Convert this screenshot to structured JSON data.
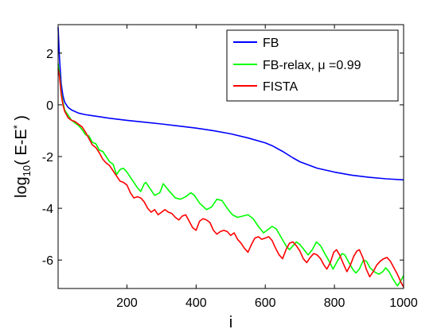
{
  "chart_data": {
    "type": "line",
    "title": "",
    "xlabel": "i",
    "ylabel": {
      "prefix": "log",
      "subscript": "10",
      "body": "( E-E",
      "superscript": "*",
      "suffix": " )"
    },
    "xlim": [
      1,
      1000
    ],
    "ylim": [
      -7.1,
      3.1
    ],
    "xticks": [
      200,
      400,
      600,
      800,
      1000
    ],
    "yticks": [
      -6,
      -4,
      -2,
      0,
      2
    ],
    "grid": false,
    "legend_position": "top-right",
    "series": [
      {
        "name": "FB",
        "color": "#0000ff",
        "points": [
          [
            1,
            3.0
          ],
          [
            5,
            1.8
          ],
          [
            10,
            0.8
          ],
          [
            15,
            0.35
          ],
          [
            20,
            0.1
          ],
          [
            30,
            -0.1
          ],
          [
            40,
            -0.2
          ],
          [
            60,
            -0.32
          ],
          [
            80,
            -0.38
          ],
          [
            100,
            -0.42
          ],
          [
            150,
            -0.52
          ],
          [
            200,
            -0.6
          ],
          [
            250,
            -0.67
          ],
          [
            300,
            -0.74
          ],
          [
            350,
            -0.82
          ],
          [
            400,
            -0.9
          ],
          [
            450,
            -1.0
          ],
          [
            500,
            -1.12
          ],
          [
            550,
            -1.28
          ],
          [
            600,
            -1.47
          ],
          [
            620,
            -1.58
          ],
          [
            650,
            -1.8
          ],
          [
            680,
            -2.05
          ],
          [
            700,
            -2.2
          ],
          [
            750,
            -2.45
          ],
          [
            800,
            -2.6
          ],
          [
            850,
            -2.72
          ],
          [
            900,
            -2.8
          ],
          [
            950,
            -2.86
          ],
          [
            1000,
            -2.9
          ]
        ]
      },
      {
        "name": "FB-relax, μ =0.99",
        "color": "#00ff00",
        "points": [
          [
            1,
            1.6
          ],
          [
            5,
            1.2
          ],
          [
            10,
            0.5
          ],
          [
            15,
            0.1
          ],
          [
            20,
            -0.2
          ],
          [
            30,
            -0.4
          ],
          [
            40,
            -0.6
          ],
          [
            50,
            -0.7
          ],
          [
            60,
            -0.8
          ],
          [
            70,
            -0.95
          ],
          [
            80,
            -1.15
          ],
          [
            90,
            -1.2
          ],
          [
            100,
            -1.45
          ],
          [
            110,
            -1.5
          ],
          [
            120,
            -1.75
          ],
          [
            130,
            -1.8
          ],
          [
            140,
            -2.0
          ],
          [
            150,
            -2.2
          ],
          [
            160,
            -2.3
          ],
          [
            170,
            -2.7
          ],
          [
            180,
            -2.5
          ],
          [
            190,
            -2.45
          ],
          [
            200,
            -2.6
          ],
          [
            215,
            -2.9
          ],
          [
            230,
            -3.2
          ],
          [
            240,
            -3.35
          ],
          [
            250,
            -3.05
          ],
          [
            255,
            -3.0
          ],
          [
            265,
            -3.2
          ],
          [
            280,
            -3.5
          ],
          [
            295,
            -3.4
          ],
          [
            305,
            -3.05
          ],
          [
            320,
            -3.3
          ],
          [
            340,
            -3.6
          ],
          [
            355,
            -3.65
          ],
          [
            370,
            -3.55
          ],
          [
            385,
            -3.4
          ],
          [
            395,
            -3.5
          ],
          [
            410,
            -3.8
          ],
          [
            430,
            -4.05
          ],
          [
            445,
            -3.95
          ],
          [
            460,
            -3.65
          ],
          [
            475,
            -3.7
          ],
          [
            490,
            -4.0
          ],
          [
            505,
            -4.25
          ],
          [
            520,
            -4.35
          ],
          [
            535,
            -4.3
          ],
          [
            550,
            -4.25
          ],
          [
            565,
            -4.4
          ],
          [
            580,
            -4.7
          ],
          [
            595,
            -4.95
          ],
          [
            605,
            -4.85
          ],
          [
            620,
            -4.7
          ],
          [
            632,
            -4.8
          ],
          [
            645,
            -5.1
          ],
          [
            660,
            -5.45
          ],
          [
            670,
            -5.6
          ],
          [
            680,
            -5.45
          ],
          [
            690,
            -5.3
          ],
          [
            700,
            -5.4
          ],
          [
            712,
            -5.6
          ],
          [
            724,
            -5.8
          ],
          [
            736,
            -5.6
          ],
          [
            748,
            -5.3
          ],
          [
            760,
            -5.45
          ],
          [
            772,
            -5.75
          ],
          [
            785,
            -6.05
          ],
          [
            796,
            -6.35
          ],
          [
            808,
            -6.05
          ],
          [
            822,
            -5.75
          ],
          [
            830,
            -5.8
          ],
          [
            842,
            -6.1
          ],
          [
            855,
            -6.4
          ],
          [
            862,
            -6.5
          ],
          [
            872,
            -6.35
          ],
          [
            884,
            -6.0
          ],
          [
            893,
            -6.05
          ],
          [
            903,
            -6.3
          ],
          [
            915,
            -6.45
          ],
          [
            928,
            -6.55
          ],
          [
            940,
            -6.45
          ],
          [
            948,
            -6.3
          ],
          [
            958,
            -6.45
          ],
          [
            970,
            -6.75
          ],
          [
            982,
            -7.0
          ],
          [
            992,
            -6.8
          ],
          [
            1000,
            -6.6
          ]
        ]
      },
      {
        "name": "FISTA",
        "color": "#ff0000",
        "points": [
          [
            1,
            1.4
          ],
          [
            5,
            1.1
          ],
          [
            10,
            0.4
          ],
          [
            15,
            0.0
          ],
          [
            20,
            -0.25
          ],
          [
            30,
            -0.5
          ],
          [
            40,
            -0.6
          ],
          [
            50,
            -0.65
          ],
          [
            60,
            -0.75
          ],
          [
            70,
            -0.85
          ],
          [
            80,
            -1.05
          ],
          [
            90,
            -1.3
          ],
          [
            100,
            -1.55
          ],
          [
            110,
            -1.65
          ],
          [
            120,
            -1.85
          ],
          [
            130,
            -2.1
          ],
          [
            140,
            -2.25
          ],
          [
            150,
            -2.35
          ],
          [
            160,
            -2.55
          ],
          [
            170,
            -2.75
          ],
          [
            180,
            -2.95
          ],
          [
            190,
            -3.0
          ],
          [
            200,
            -3.1
          ],
          [
            210,
            -3.4
          ],
          [
            220,
            -3.6
          ],
          [
            230,
            -3.55
          ],
          [
            240,
            -3.6
          ],
          [
            250,
            -3.75
          ],
          [
            260,
            -4.0
          ],
          [
            270,
            -4.15
          ],
          [
            280,
            -4.05
          ],
          [
            290,
            -4.25
          ],
          [
            300,
            -4.15
          ],
          [
            310,
            -4.05
          ],
          [
            320,
            -4.15
          ],
          [
            330,
            -4.2
          ],
          [
            340,
            -4.35
          ],
          [
            350,
            -4.45
          ],
          [
            360,
            -4.3
          ],
          [
            370,
            -4.25
          ],
          [
            380,
            -4.5
          ],
          [
            390,
            -4.75
          ],
          [
            400,
            -4.85
          ],
          [
            410,
            -4.5
          ],
          [
            420,
            -4.4
          ],
          [
            430,
            -4.45
          ],
          [
            440,
            -4.55
          ],
          [
            450,
            -4.85
          ],
          [
            460,
            -5.0
          ],
          [
            470,
            -4.9
          ],
          [
            480,
            -4.85
          ],
          [
            490,
            -4.9
          ],
          [
            500,
            -5.05
          ],
          [
            510,
            -4.95
          ],
          [
            520,
            -5.2
          ],
          [
            530,
            -5.35
          ],
          [
            540,
            -5.55
          ],
          [
            550,
            -5.7
          ],
          [
            560,
            -5.4
          ],
          [
            570,
            -5.15
          ],
          [
            580,
            -5.1
          ],
          [
            590,
            -5.2
          ],
          [
            600,
            -5.15
          ],
          [
            610,
            -5.1
          ],
          [
            620,
            -5.25
          ],
          [
            630,
            -5.55
          ],
          [
            640,
            -5.8
          ],
          [
            650,
            -5.95
          ],
          [
            660,
            -5.6
          ],
          [
            670,
            -5.35
          ],
          [
            680,
            -5.3
          ],
          [
            690,
            -5.45
          ],
          [
            700,
            -5.65
          ],
          [
            710,
            -5.95
          ],
          [
            720,
            -6.1
          ],
          [
            730,
            -5.9
          ],
          [
            740,
            -5.75
          ],
          [
            750,
            -5.8
          ],
          [
            760,
            -5.95
          ],
          [
            770,
            -6.2
          ],
          [
            778,
            -6.35
          ],
          [
            788,
            -6.1
          ],
          [
            798,
            -5.7
          ],
          [
            806,
            -5.6
          ],
          [
            815,
            -5.8
          ],
          [
            826,
            -6.15
          ],
          [
            836,
            -6.45
          ],
          [
            846,
            -6.2
          ],
          [
            856,
            -5.85
          ],
          [
            865,
            -5.65
          ],
          [
            872,
            -5.6
          ],
          [
            882,
            -5.9
          ],
          [
            892,
            -6.35
          ],
          [
            902,
            -6.65
          ],
          [
            912,
            -6.45
          ],
          [
            922,
            -6.2
          ],
          [
            932,
            -6.05
          ],
          [
            942,
            -5.95
          ],
          [
            952,
            -5.9
          ],
          [
            962,
            -6.05
          ],
          [
            972,
            -6.3
          ],
          [
            982,
            -6.55
          ],
          [
            992,
            -6.85
          ],
          [
            1000,
            -7.05
          ]
        ]
      }
    ]
  }
}
